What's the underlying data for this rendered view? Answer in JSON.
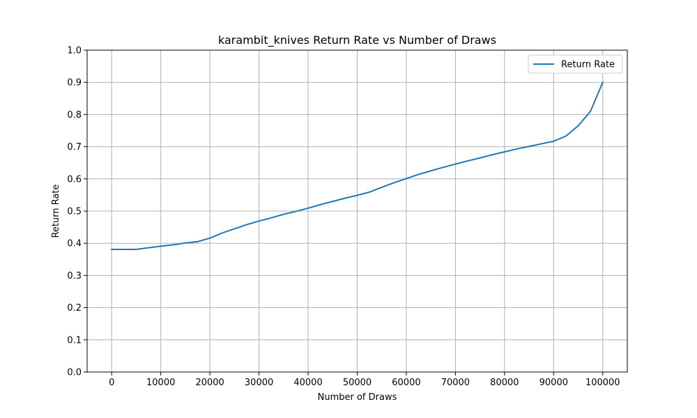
{
  "chart_data": {
    "type": "line",
    "title": "karambit_knives Return Rate vs Number of Draws",
    "xlabel": "Number of Draws",
    "ylabel": "Return Rate",
    "xlim": [
      -5000,
      105000
    ],
    "ylim": [
      0.0,
      1.0
    ],
    "xticks": [
      0,
      10000,
      20000,
      30000,
      40000,
      50000,
      60000,
      70000,
      80000,
      90000,
      100000
    ],
    "xtick_labels": [
      "0",
      "10000",
      "20000",
      "30000",
      "40000",
      "50000",
      "60000",
      "70000",
      "80000",
      "90000",
      "100000"
    ],
    "yticks": [
      0.0,
      0.1,
      0.2,
      0.3,
      0.4,
      0.5,
      0.6,
      0.7,
      0.8,
      0.9,
      1.0
    ],
    "ytick_labels": [
      "0.0",
      "0.1",
      "0.2",
      "0.3",
      "0.4",
      "0.5",
      "0.6",
      "0.7",
      "0.8",
      "0.9",
      "1.0"
    ],
    "grid": true,
    "legend_position": "upper right",
    "series": [
      {
        "name": "Return Rate",
        "color": "#1f77b4",
        "x": [
          0,
          2500,
          5000,
          7500,
          10000,
          12500,
          15000,
          17500,
          20000,
          22500,
          25000,
          27500,
          30000,
          32500,
          35000,
          37500,
          40000,
          42500,
          45000,
          47500,
          50000,
          52500,
          55000,
          57500,
          60000,
          62500,
          65000,
          67500,
          70000,
          72500,
          75000,
          77500,
          80000,
          82500,
          85000,
          87500,
          90000,
          92500,
          95000,
          97500,
          100000
        ],
        "y": [
          0.381,
          0.381,
          0.381,
          0.386,
          0.391,
          0.395,
          0.401,
          0.405,
          0.416,
          0.432,
          0.445,
          0.458,
          0.469,
          0.479,
          0.49,
          0.499,
          0.509,
          0.52,
          0.53,
          0.54,
          0.549,
          0.559,
          0.574,
          0.588,
          0.601,
          0.614,
          0.625,
          0.636,
          0.646,
          0.656,
          0.665,
          0.675,
          0.684,
          0.693,
          0.701,
          0.709,
          0.717,
          0.733,
          0.765,
          0.81,
          0.9
        ]
      }
    ]
  }
}
